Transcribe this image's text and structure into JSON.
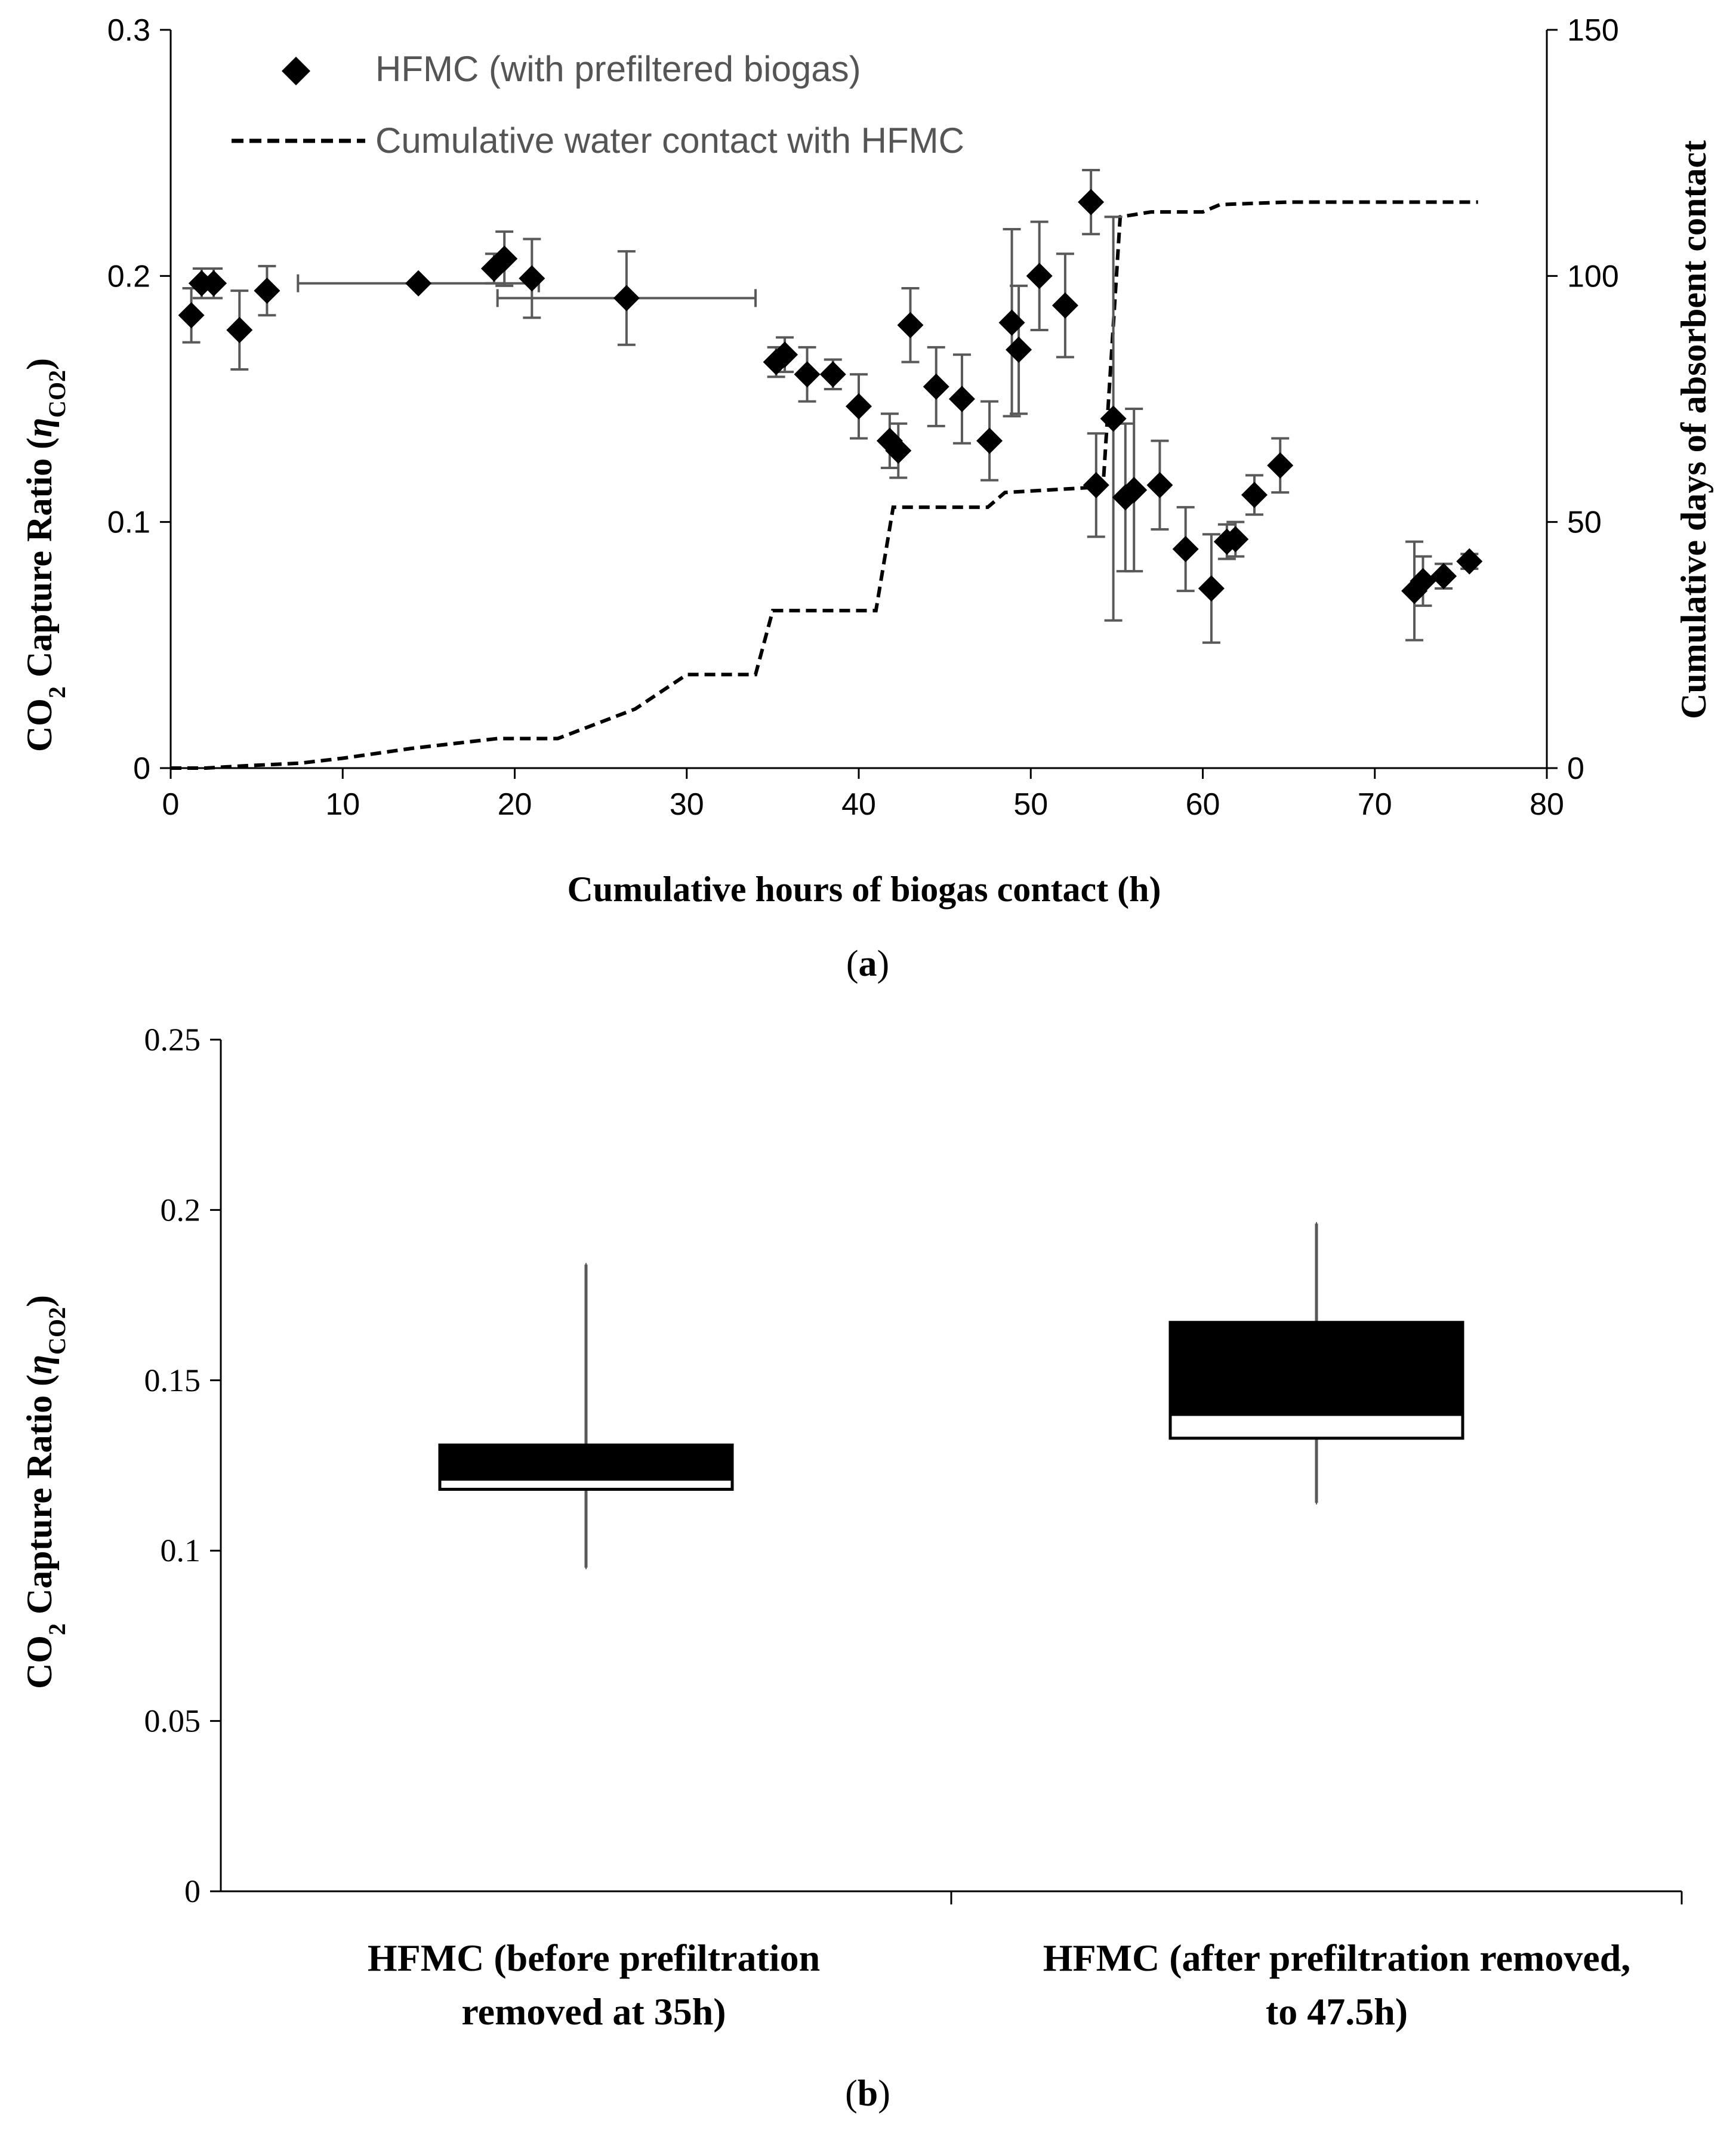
{
  "chart_data": [
    {
      "type": "scatter",
      "panel_label": "a",
      "xlabel": "Cumulative hours of biogas contact (h)",
      "ylabel_main": "CO",
      "ylabel_sub": "2",
      "ylabel_rest": " Capture Ratio (",
      "ylabel_eta": "η",
      "ylabel_eta_sub": "CO2",
      "ylabel_close": ")",
      "y2label": "Cumulative days of absorbent contact",
      "xlim": [
        0,
        80
      ],
      "ylim": [
        0,
        0.3
      ],
      "y2lim": [
        0,
        150
      ],
      "xticks": [
        "0",
        "10",
        "20",
        "30",
        "40",
        "50",
        "60",
        "70",
        "80"
      ],
      "yticks": [
        "0",
        "0.1",
        "0.2",
        "0.3"
      ],
      "y2ticks": [
        "0",
        "50",
        "100",
        "150"
      ],
      "grid": false,
      "legend_position": "top-left",
      "series": [
        {
          "name": "HFMC (with prefiltered biogas)",
          "marker": "diamond",
          "color": "#000000",
          "points": [
            {
              "x": 1.2,
              "y": 0.184,
              "err": 0.011
            },
            {
              "x": 1.8,
              "y": 0.197,
              "err": 0.006
            },
            {
              "x": 2.5,
              "y": 0.197,
              "err": 0.006
            },
            {
              "x": 4.0,
              "y": 0.178,
              "err": 0.016
            },
            {
              "x": 5.6,
              "y": 0.194,
              "err": 0.01
            },
            {
              "x": 14.4,
              "y": 0.197,
              "err": 0.0,
              "xerr": 7.0
            },
            {
              "x": 18.8,
              "y": 0.203,
              "err": 0.006
            },
            {
              "x": 19.4,
              "y": 0.207,
              "err": 0.011
            },
            {
              "x": 21.0,
              "y": 0.199,
              "err": 0.016
            },
            {
              "x": 26.5,
              "y": 0.191,
              "err": 0.019,
              "xerr": 7.5
            },
            {
              "x": 35.2,
              "y": 0.165,
              "err": 0.006
            },
            {
              "x": 35.7,
              "y": 0.168,
              "err": 0.007
            },
            {
              "x": 37.0,
              "y": 0.16,
              "err": 0.011
            },
            {
              "x": 38.5,
              "y": 0.16,
              "err": 0.006
            },
            {
              "x": 40.0,
              "y": 0.147,
              "err": 0.013
            },
            {
              "x": 41.8,
              "y": 0.133,
              "err": 0.011
            },
            {
              "x": 42.3,
              "y": 0.129,
              "err": 0.011
            },
            {
              "x": 43.0,
              "y": 0.18,
              "err": 0.015
            },
            {
              "x": 44.5,
              "y": 0.155,
              "err": 0.016
            },
            {
              "x": 46.0,
              "y": 0.15,
              "err": 0.018
            },
            {
              "x": 47.6,
              "y": 0.133,
              "err": 0.016
            },
            {
              "x": 48.9,
              "y": 0.181,
              "err": 0.038
            },
            {
              "x": 49.3,
              "y": 0.17,
              "err": 0.026
            },
            {
              "x": 50.5,
              "y": 0.2,
              "err": 0.022
            },
            {
              "x": 52.0,
              "y": 0.188,
              "err": 0.021
            },
            {
              "x": 53.5,
              "y": 0.23,
              "err": 0.013
            },
            {
              "x": 53.8,
              "y": 0.115,
              "err": 0.021
            },
            {
              "x": 54.8,
              "y": 0.142,
              "err": 0.082
            },
            {
              "x": 55.5,
              "y": 0.11,
              "err": 0.03
            },
            {
              "x": 56.0,
              "y": 0.113,
              "err": 0.033
            },
            {
              "x": 57.5,
              "y": 0.115,
              "err": 0.018
            },
            {
              "x": 59.0,
              "y": 0.089,
              "err": 0.017
            },
            {
              "x": 60.5,
              "y": 0.073,
              "err": 0.022
            },
            {
              "x": 61.4,
              "y": 0.092,
              "err": 0.007
            },
            {
              "x": 61.9,
              "y": 0.093,
              "err": 0.007
            },
            {
              "x": 63.0,
              "y": 0.111,
              "err": 0.008
            },
            {
              "x": 64.5,
              "y": 0.123,
              "err": 0.011
            },
            {
              "x": 72.3,
              "y": 0.072,
              "err": 0.02
            },
            {
              "x": 72.8,
              "y": 0.076,
              "err": 0.01
            },
            {
              "x": 74.0,
              "y": 0.078,
              "err": 0.005
            },
            {
              "x": 75.5,
              "y": 0.084,
              "err": 0.003
            }
          ]
        },
        {
          "name": "Cumulative water contact with HFMC",
          "style": "dashed",
          "color": "#000000",
          "axis": "right",
          "points": [
            [
              0,
              0
            ],
            [
              2,
              0
            ],
            [
              4.5,
              0.5
            ],
            [
              7.5,
              1
            ],
            [
              10,
              2
            ],
            [
              14,
              4
            ],
            [
              19,
              6
            ],
            [
              22.5,
              6
            ],
            [
              27,
              12
            ],
            [
              30,
              19
            ],
            [
              34,
              19
            ],
            [
              35,
              32
            ],
            [
              41,
              32
            ],
            [
              42,
              53
            ],
            [
              47.5,
              53
            ],
            [
              48.5,
              56
            ],
            [
              53.5,
              57
            ],
            [
              54.2,
              57
            ],
            [
              55.2,
              112
            ],
            [
              57,
              113
            ],
            [
              60,
              113
            ],
            [
              61,
              114.5
            ],
            [
              65,
              115
            ],
            [
              70,
              115
            ],
            [
              76,
              115
            ]
          ]
        }
      ]
    },
    {
      "type": "box",
      "panel_label": "b",
      "ylabel_main": "CO",
      "ylabel_sub": "2",
      "ylabel_rest": " Capture Ratio (",
      "ylabel_eta": "η",
      "ylabel_eta_sub": "CO2",
      "ylabel_close": ")",
      "ylim": [
        0,
        0.25
      ],
      "yticks": [
        "0",
        "0.05",
        "0.1",
        "0.15",
        "0.2",
        "0.25"
      ],
      "grid": false,
      "categories": [
        {
          "line1": "HFMC (before prefiltration",
          "line2": "removed at 35h)"
        },
        {
          "line1": "HFMC (after prefiltration removed,",
          "line2": "to 47.5h)"
        }
      ],
      "boxes": [
        {
          "min": 0.095,
          "q1": 0.118,
          "median": 0.121,
          "q3": 0.131,
          "max": 0.184
        },
        {
          "min": 0.114,
          "q1": 0.133,
          "median": 0.14,
          "q3": 0.167,
          "max": 0.196
        }
      ]
    }
  ]
}
